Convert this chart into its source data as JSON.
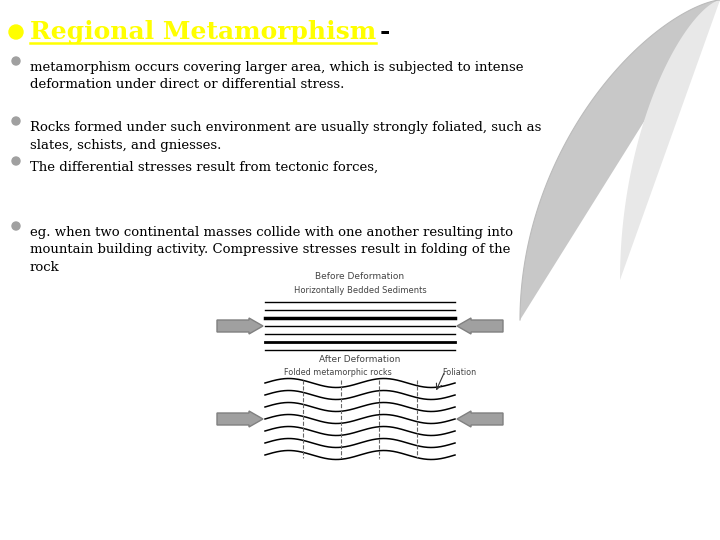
{
  "title_yellow": "Regional Metamorphism",
  "title_dash": "-",
  "title_color": "#FFFF00",
  "title_fontsize": 18,
  "text_color": "#000000",
  "bg_color": "#FFFFFF",
  "bullets": [
    "metamorphism occurs covering larger area, which is subjected to intense\ndeformation under direct or differential stress.",
    "Rocks formed under such environment are usually strongly foliated, such as\nslates, schists, and gniesses.",
    "The differential stresses result from tectonic forces,",
    "eg. when two continental masses collide with one another resulting into\nmountain building activity. Compressive stresses result in folding of the\nrock"
  ],
  "diagram_label_before": "Before Deformation",
  "diagram_label_sediments": "Horizontally Bedded Sediments",
  "diagram_label_after": "After Deformation",
  "diagram_label_folded": "Folded metamorphic rocks",
  "diagram_label_foliation": "Foliation",
  "arrow_color": "#A0A0A0",
  "arrow_edge": "#808080",
  "line_color": "#000000",
  "wave_color": "#000000",
  "bullet_gray": "#A0A0A0",
  "font_family": "DejaVu Serif",
  "curl_outer": "#C8C8C8",
  "curl_inner": "#E8E8E8"
}
